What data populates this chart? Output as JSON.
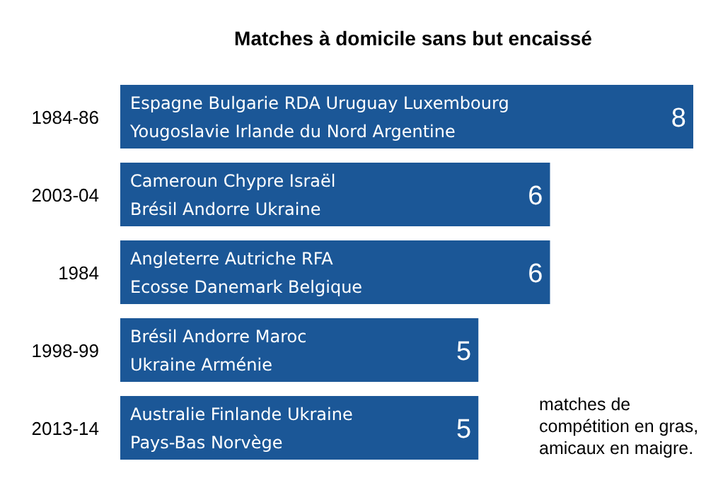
{
  "chart_data": {
    "type": "bar",
    "orientation": "horizontal",
    "title": "Matches à domicile sans but encaissé",
    "categories": [
      "1984-86",
      "2003-04",
      "1984",
      "1998-99",
      "2013-14"
    ],
    "values": [
      8,
      6,
      6,
      5,
      5
    ],
    "color": "#1b5797",
    "data_labels": true,
    "annotations": [
      {
        "text": "Espagne Bulgarie RDA Uruguay Luxembourg",
        "y": "1984-86"
      },
      {
        "text": "Yougoslavie Irlande du Nord Argentine",
        "y": "1984-86"
      },
      {
        "text": "Cameroun Chypre Israël",
        "y": "2003-04"
      },
      {
        "text": "Brésil Andorre Ukraine",
        "y": "2003-04"
      },
      {
        "text": "Angleterre Autriche RFA",
        "y": "1984"
      },
      {
        "text": "Ecosse Danemark Belgique",
        "y": "1984"
      },
      {
        "text": "Brésil Andorre Maroc",
        "y": "1998-99"
      },
      {
        "text": "Ukraine Arménie",
        "y": "1998-99"
      },
      {
        "text": "Australie Finlande Ukraine",
        "y": "2013-14"
      },
      {
        "text": "Pays-Bas Norvège",
        "y": "2013-14"
      },
      "matches de compétition en gras, amicaux en maigre."
    ]
  }
}
